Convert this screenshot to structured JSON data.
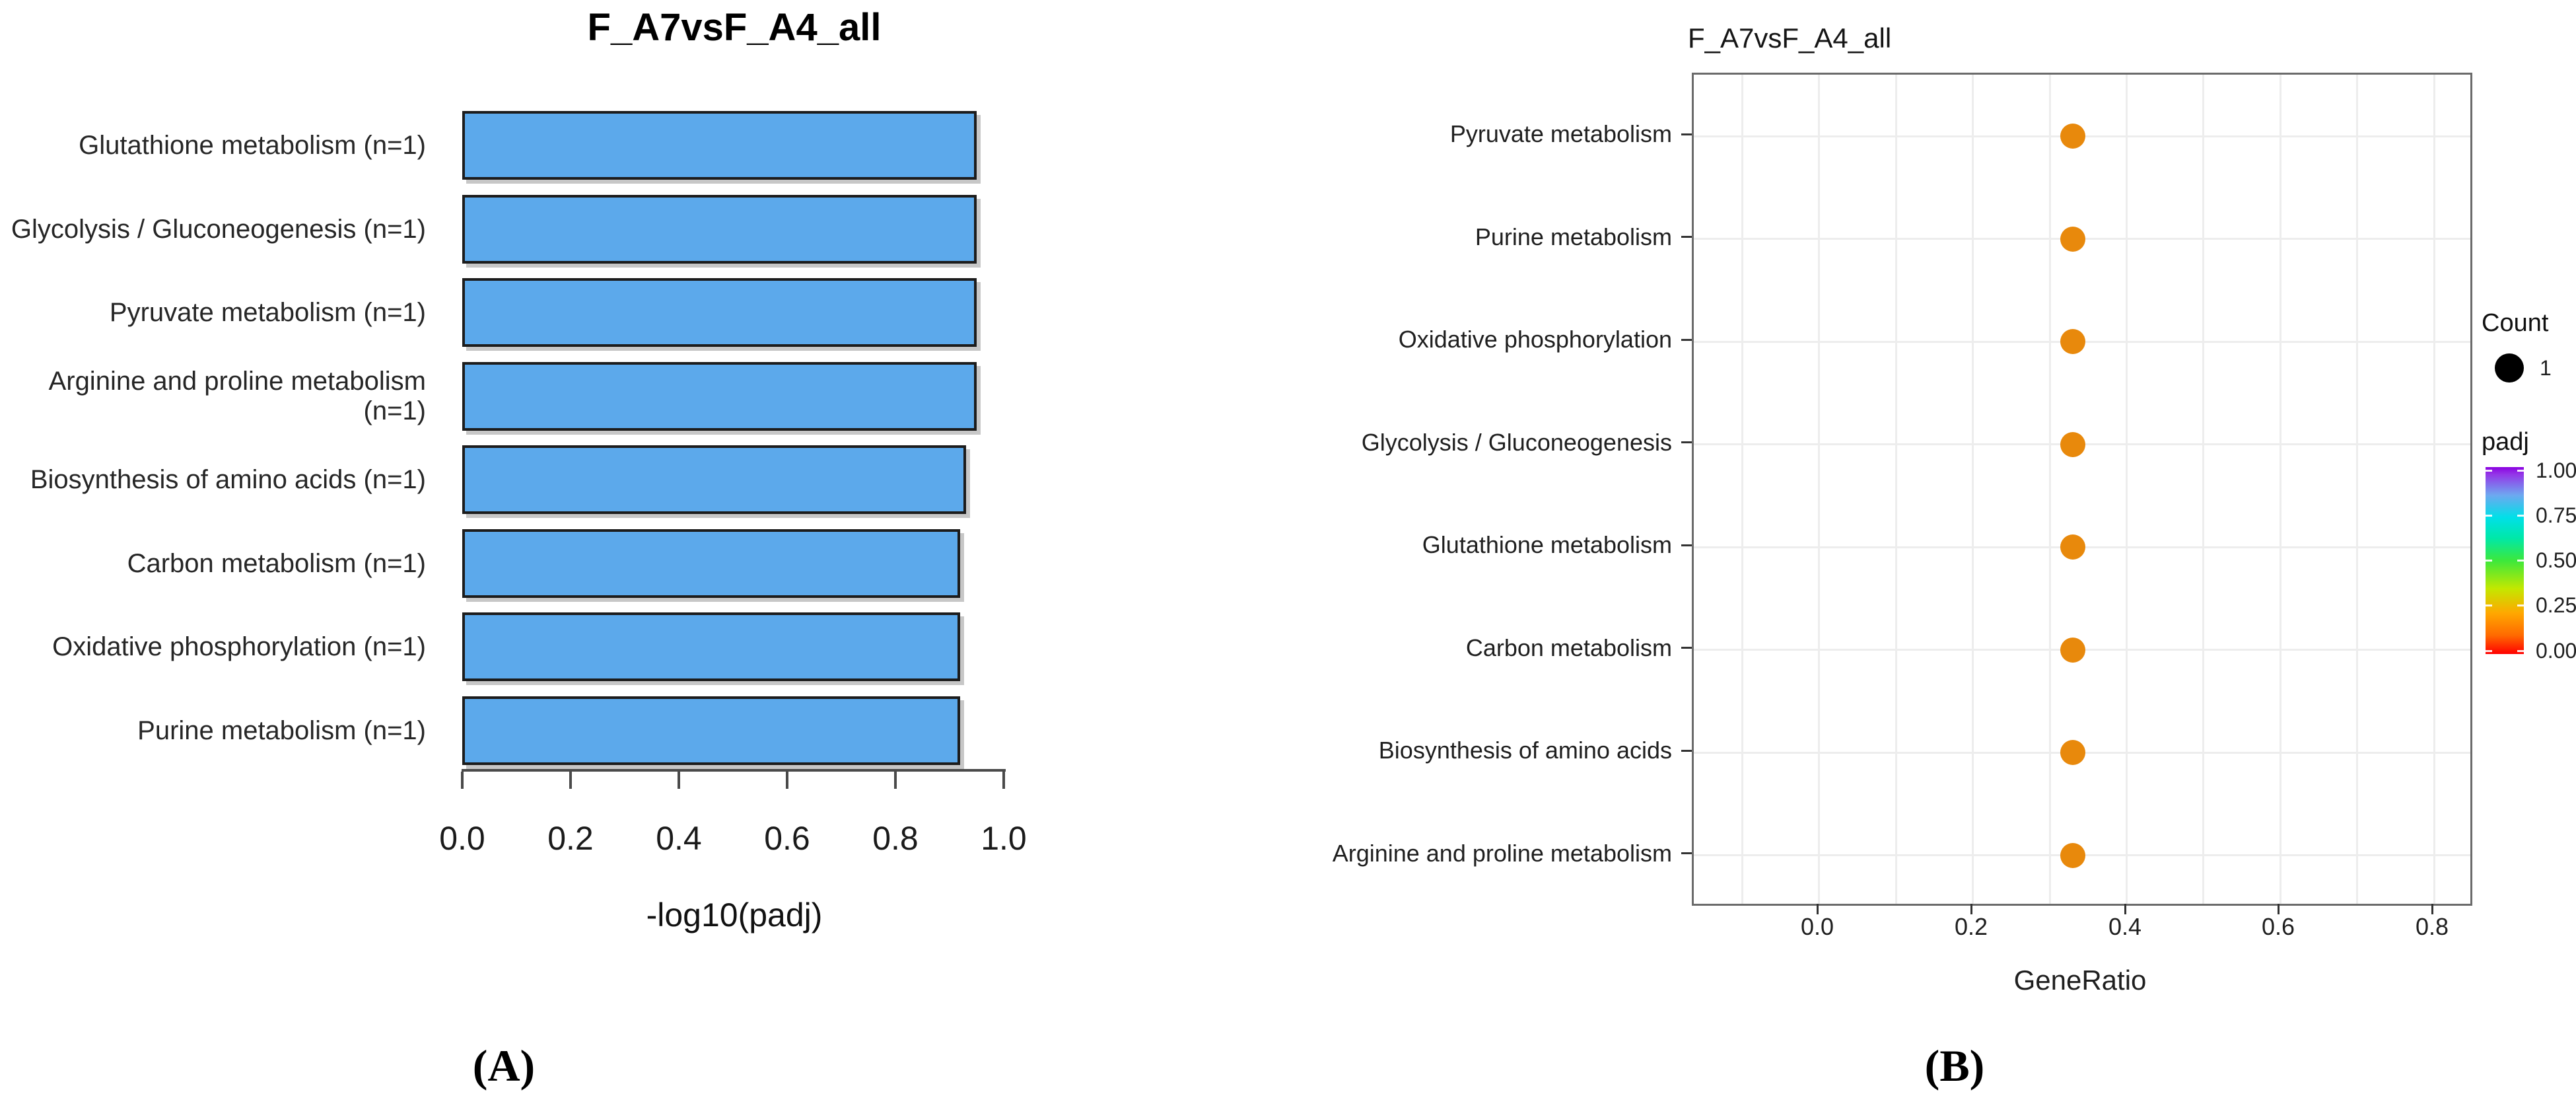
{
  "captions": {
    "panel_a": "(A)",
    "panel_b": "(B)"
  },
  "chart_data": [
    {
      "panel": "A",
      "type": "bar",
      "orientation": "horizontal",
      "title": "F_A7vsF_A4_all",
      "categories": [
        "Glutathione metabolism (n=1)",
        "Glycolysis / Gluconeogenesis (n=1)",
        "Pyruvate metabolism (n=1)",
        "Arginine and proline metabolism (n=1)",
        "Biosynthesis of amino acids (n=1)",
        "Carbon metabolism (n=1)",
        "Oxidative phosphorylation (n=1)",
        "Purine metabolism (n=1)"
      ],
      "values": [
        0.95,
        0.95,
        0.95,
        0.95,
        0.93,
        0.92,
        0.92,
        0.92
      ],
      "xlabel": "-log10(padj)",
      "xticks": [
        0.0,
        0.2,
        0.4,
        0.6,
        0.8,
        1.0
      ],
      "xtick_labels": [
        "0.0",
        "0.2",
        "0.4",
        "0.6",
        "0.8",
        "1.0"
      ],
      "xlim": [
        0,
        1.0
      ],
      "grid": false,
      "bar_color": "#5CA9EB",
      "bar_border_color": "#1c1c1c"
    },
    {
      "panel": "B",
      "type": "scatter",
      "title": "F_A7vsF_A4_all",
      "categories": [
        "Pyruvate metabolism",
        "Purine metabolism",
        "Oxidative phosphorylation",
        "Glycolysis / Gluconeogenesis",
        "Glutathione metabolism",
        "Carbon metabolism",
        "Biosynthesis of amino acids",
        "Arginine and proline metabolism"
      ],
      "x": [
        0.33,
        0.33,
        0.33,
        0.33,
        0.33,
        0.33,
        0.33,
        0.33
      ],
      "count": [
        1,
        1,
        1,
        1,
        1,
        1,
        1,
        1
      ],
      "xlabel": "GeneRatio",
      "xticks": [
        0.0,
        0.2,
        0.4,
        0.6,
        0.8
      ],
      "xtick_labels": [
        "0.0",
        "0.2",
        "0.4",
        "0.6",
        "0.8"
      ],
      "xlim": [
        -0.163,
        0.847
      ],
      "grid_x": [
        -0.1,
        0.0,
        0.1,
        0.2,
        0.3,
        0.4,
        0.5,
        0.6,
        0.7,
        0.8
      ],
      "grid": true,
      "dot_color": "#E8890C",
      "legend_position": "right"
    }
  ],
  "legend": {
    "count_title": "Count",
    "count_items": [
      {
        "size_label": "1"
      }
    ],
    "padj_title": "padj",
    "padj_tick_labels": [
      "1.00",
      "0.75",
      "0.50",
      "0.25",
      "0.00"
    ],
    "padj_scale_colors_bottom_to_top": [
      "#FF0000",
      "#FF6A00",
      "#FFA800",
      "#C3E800",
      "#3CE83C",
      "#00E8A8",
      "#00E0E8",
      "#6EA8F0",
      "#9437E8",
      "#8A00E0"
    ]
  }
}
